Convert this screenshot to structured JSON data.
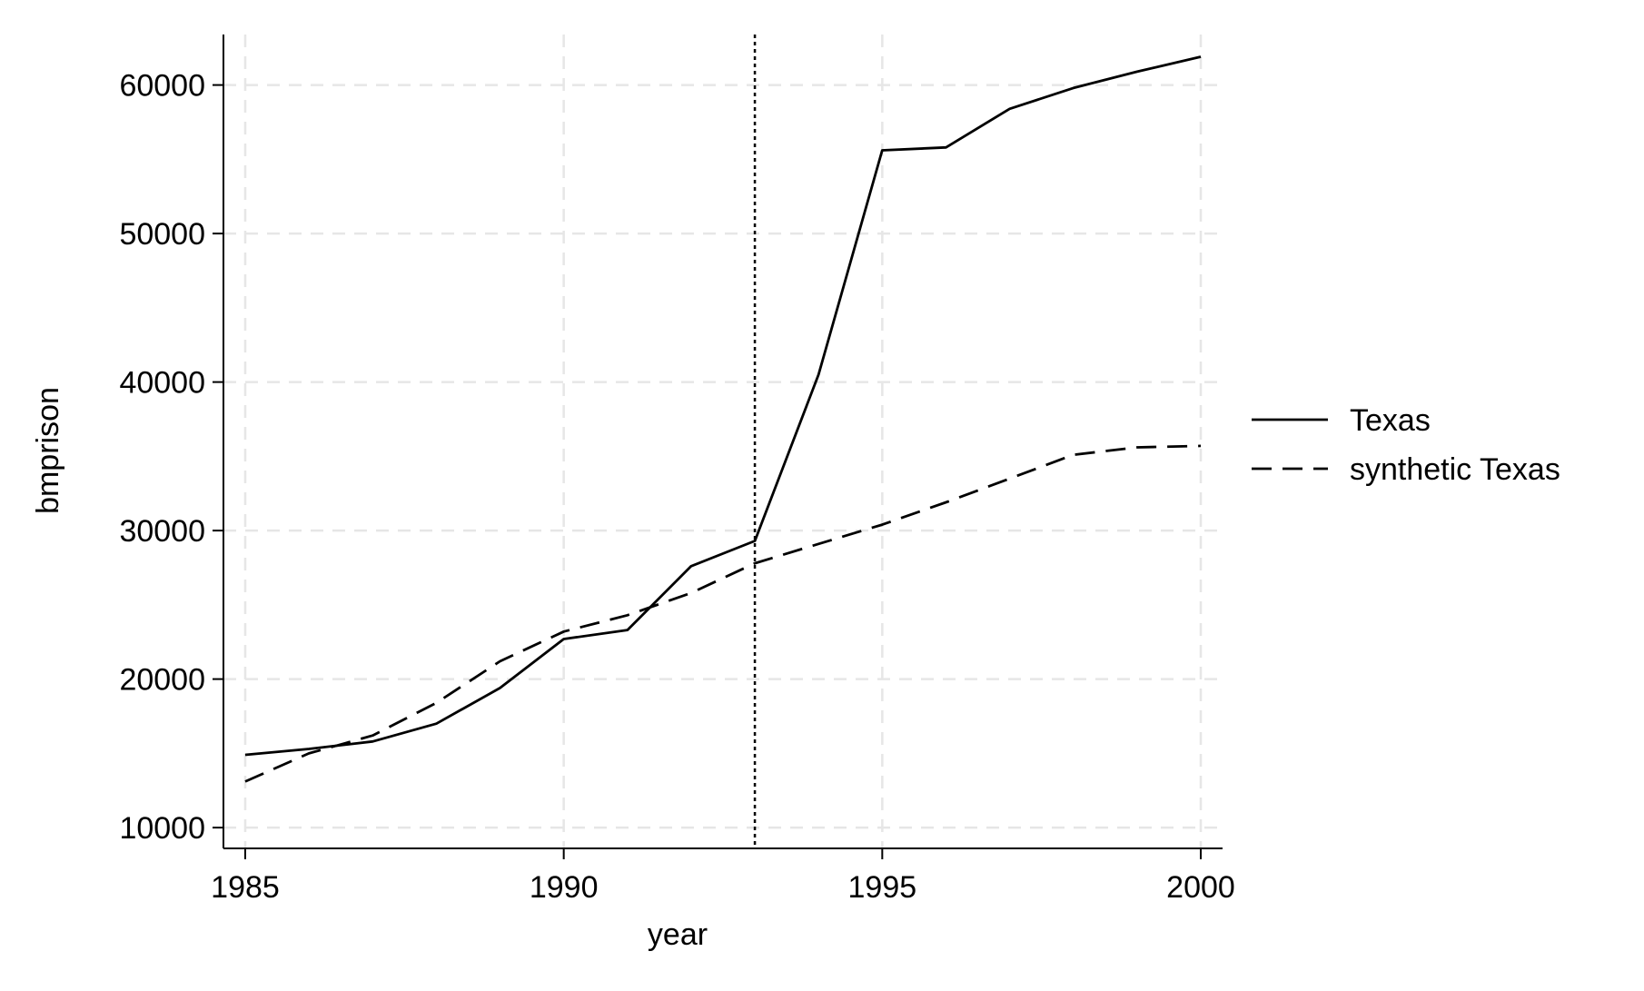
{
  "chart_data": {
    "type": "line",
    "title": "",
    "xlabel": "year",
    "ylabel": "bmprison",
    "xlim": [
      1985,
      2000
    ],
    "ylim": [
      8600,
      63400
    ],
    "xticks": [
      1985,
      1990,
      1995,
      2000
    ],
    "yticks": [
      10000,
      20000,
      30000,
      40000,
      50000,
      60000
    ],
    "xtick_labels": [
      "1985",
      "1990",
      "1995",
      "2000"
    ],
    "ytick_labels": [
      "10000",
      "20000",
      "30000",
      "40000",
      "50000",
      "60000"
    ],
    "grid": true,
    "legend_position": "right",
    "reference_line": {
      "x": 1993,
      "style": "dotted"
    },
    "x": [
      1985,
      1986,
      1987,
      1988,
      1989,
      1990,
      1991,
      1992,
      1993,
      1994,
      1995,
      1996,
      1997,
      1998,
      1999,
      2000
    ],
    "series": [
      {
        "name": "Texas",
        "style": "solid",
        "values": [
          14900,
          15300,
          15800,
          17000,
          19400,
          22700,
          23300,
          27600,
          29300,
          40500,
          55600,
          55800,
          58400,
          59800,
          60900,
          61900
        ]
      },
      {
        "name": "synthetic Texas",
        "style": "dashed",
        "values": [
          13100,
          15000,
          16200,
          18400,
          21200,
          23200,
          24300,
          25800,
          27800,
          29100,
          30400,
          31900,
          33500,
          35100,
          35600,
          35700
        ]
      }
    ],
    "colors": {
      "line": "#000000",
      "grid": "#e6e6e6",
      "background": "#ffffff"
    }
  }
}
